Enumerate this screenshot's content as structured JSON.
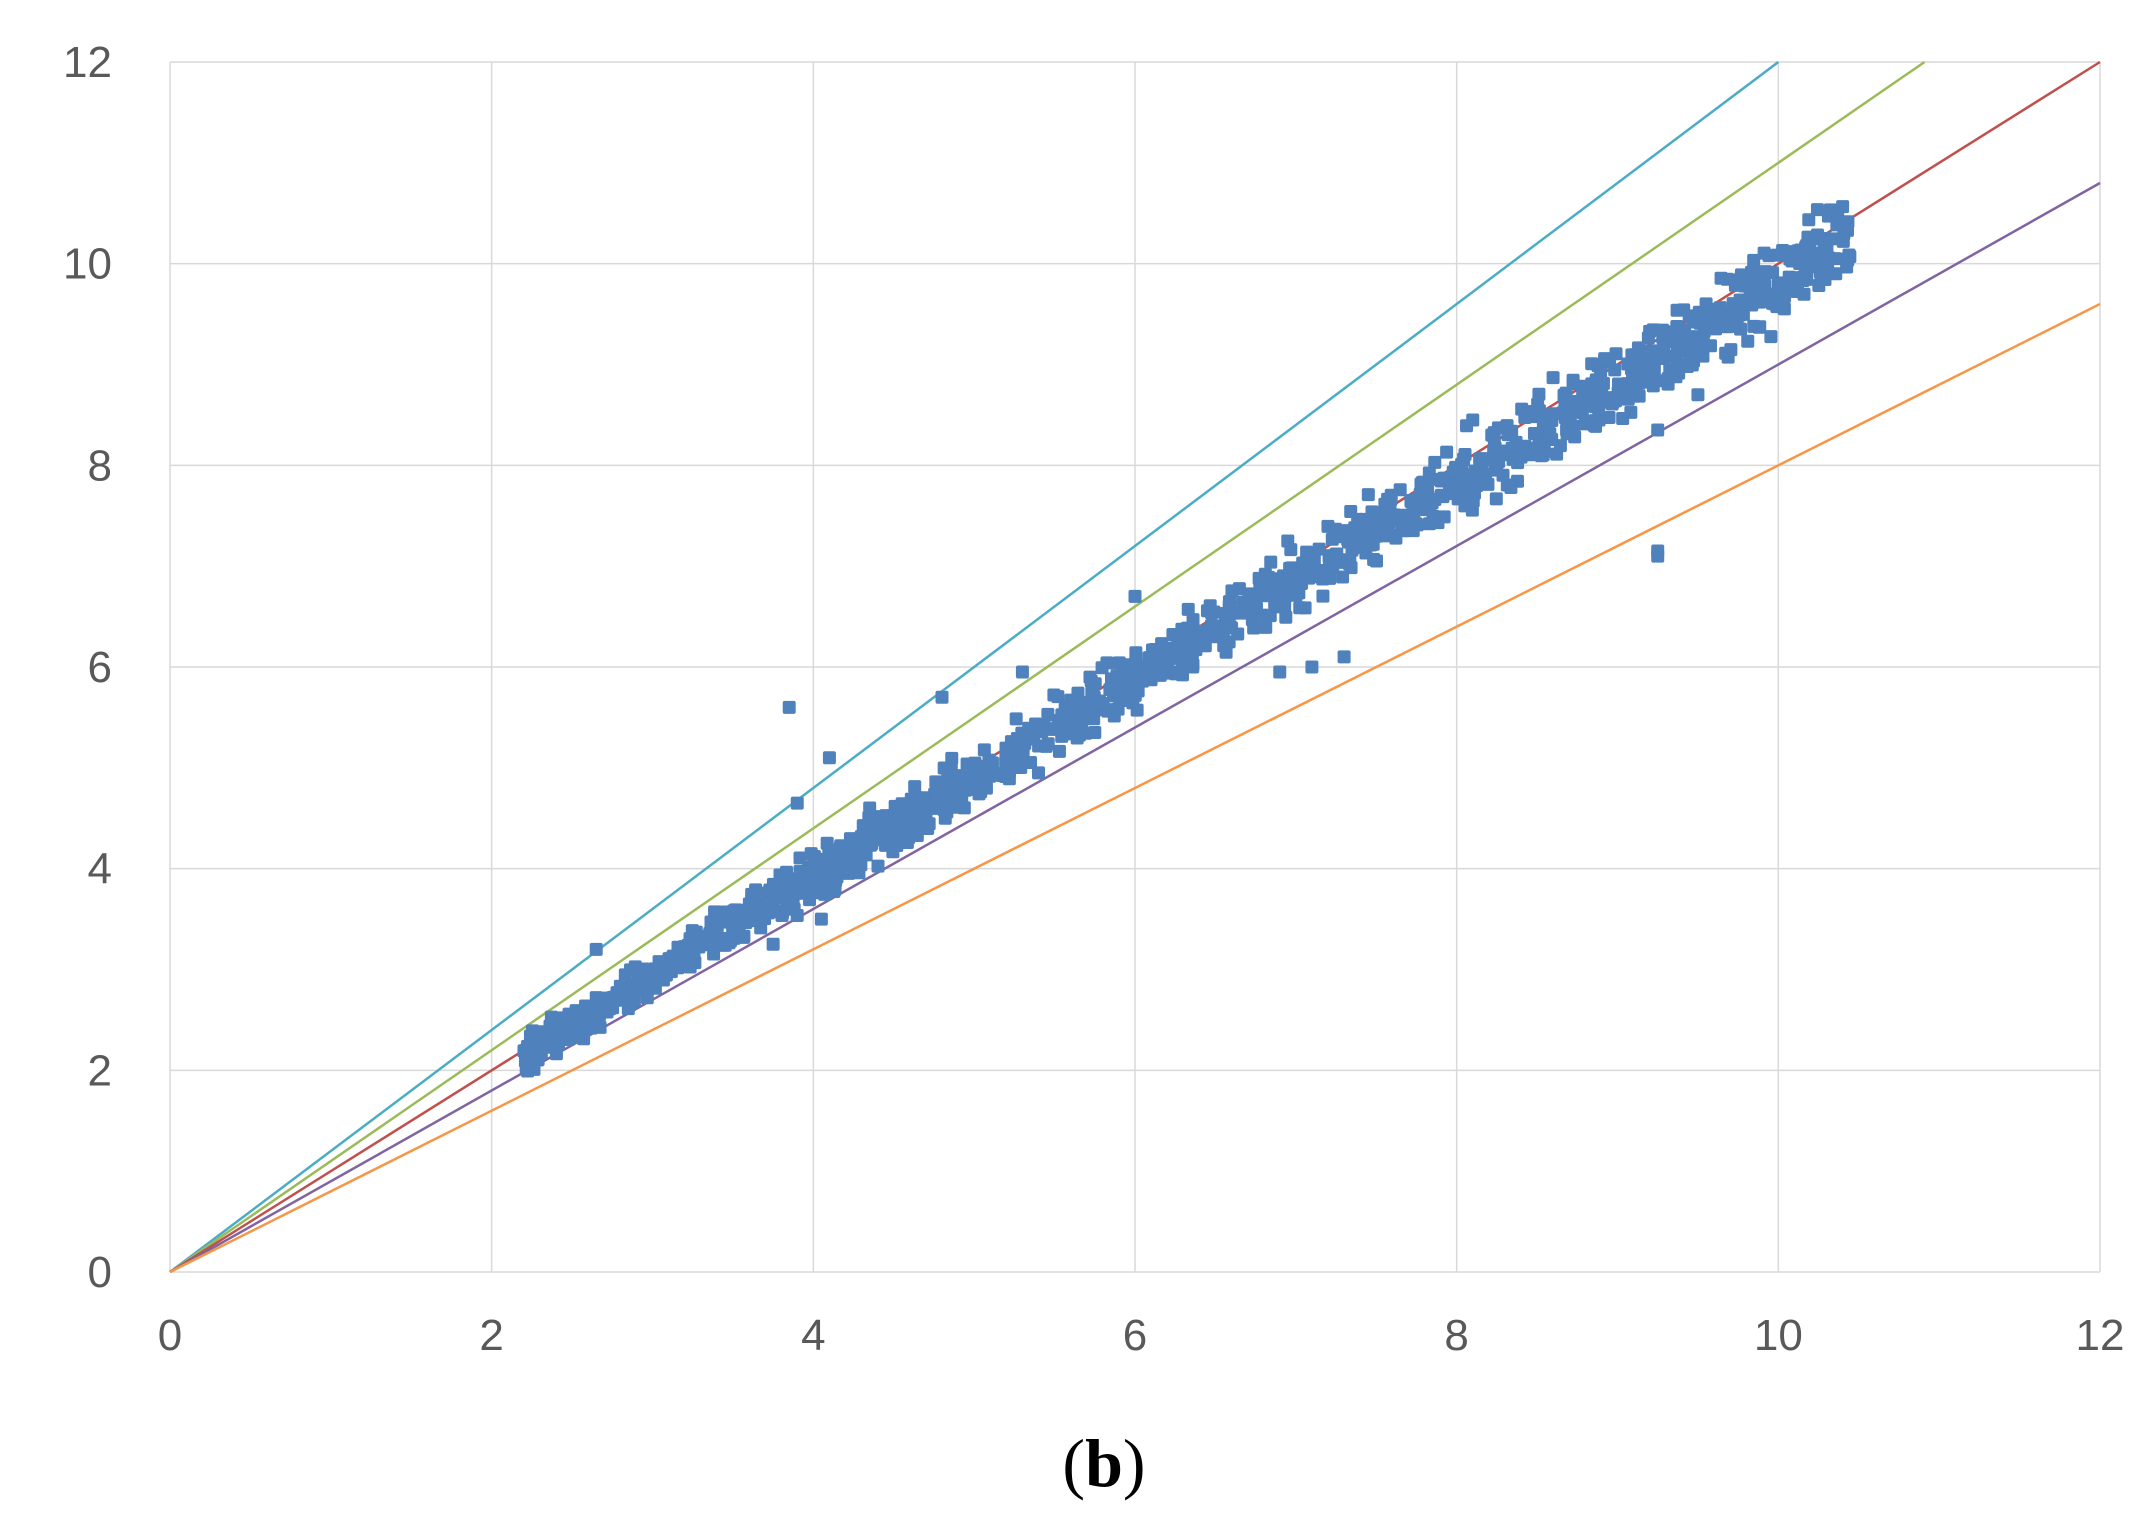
{
  "caption": {
    "open": "(",
    "letter": "b",
    "close": ")"
  },
  "chart_data": {
    "type": "scatter",
    "xlim": [
      0,
      12
    ],
    "ylim": [
      0,
      12
    ],
    "x_ticks": [
      "0",
      "2",
      "4",
      "6",
      "8",
      "10",
      "12"
    ],
    "y_ticks": [
      "0",
      "2",
      "4",
      "6",
      "8",
      "10",
      "12"
    ],
    "grid": true,
    "legend": "none",
    "reference_lines": [
      {
        "slope": 1.2,
        "color": "#4bacc6"
      },
      {
        "slope": 1.1,
        "color": "#9bbb59"
      },
      {
        "slope": 1.0,
        "color": "#c0504d"
      },
      {
        "slope": 0.9,
        "color": "#8064a2"
      },
      {
        "slope": 0.8,
        "color": "#f79646"
      }
    ],
    "scatter": {
      "color": "#4f81bd",
      "trend_slope": 0.985,
      "x_range": [
        2.2,
        10.45
      ],
      "outliers": [
        [
          3.85,
          5.6
        ],
        [
          4.1,
          5.1
        ],
        [
          4.8,
          5.7
        ],
        [
          5.3,
          5.95
        ],
        [
          7.3,
          6.1
        ],
        [
          9.25,
          7.15
        ],
        [
          9.25,
          7.1
        ],
        [
          3.75,
          3.25
        ],
        [
          4.05,
          3.5
        ],
        [
          9.25,
          8.35
        ],
        [
          9.5,
          8.7
        ],
        [
          7.1,
          6.0
        ],
        [
          6.9,
          5.95
        ],
        [
          2.65,
          3.2
        ],
        [
          3.9,
          4.65
        ],
        [
          5.4,
          4.95
        ],
        [
          6.0,
          6.7
        ],
        [
          6.95,
          7.25
        ],
        [
          8.1,
          8.45
        ],
        [
          5.75,
          5.35
        ]
      ]
    }
  }
}
